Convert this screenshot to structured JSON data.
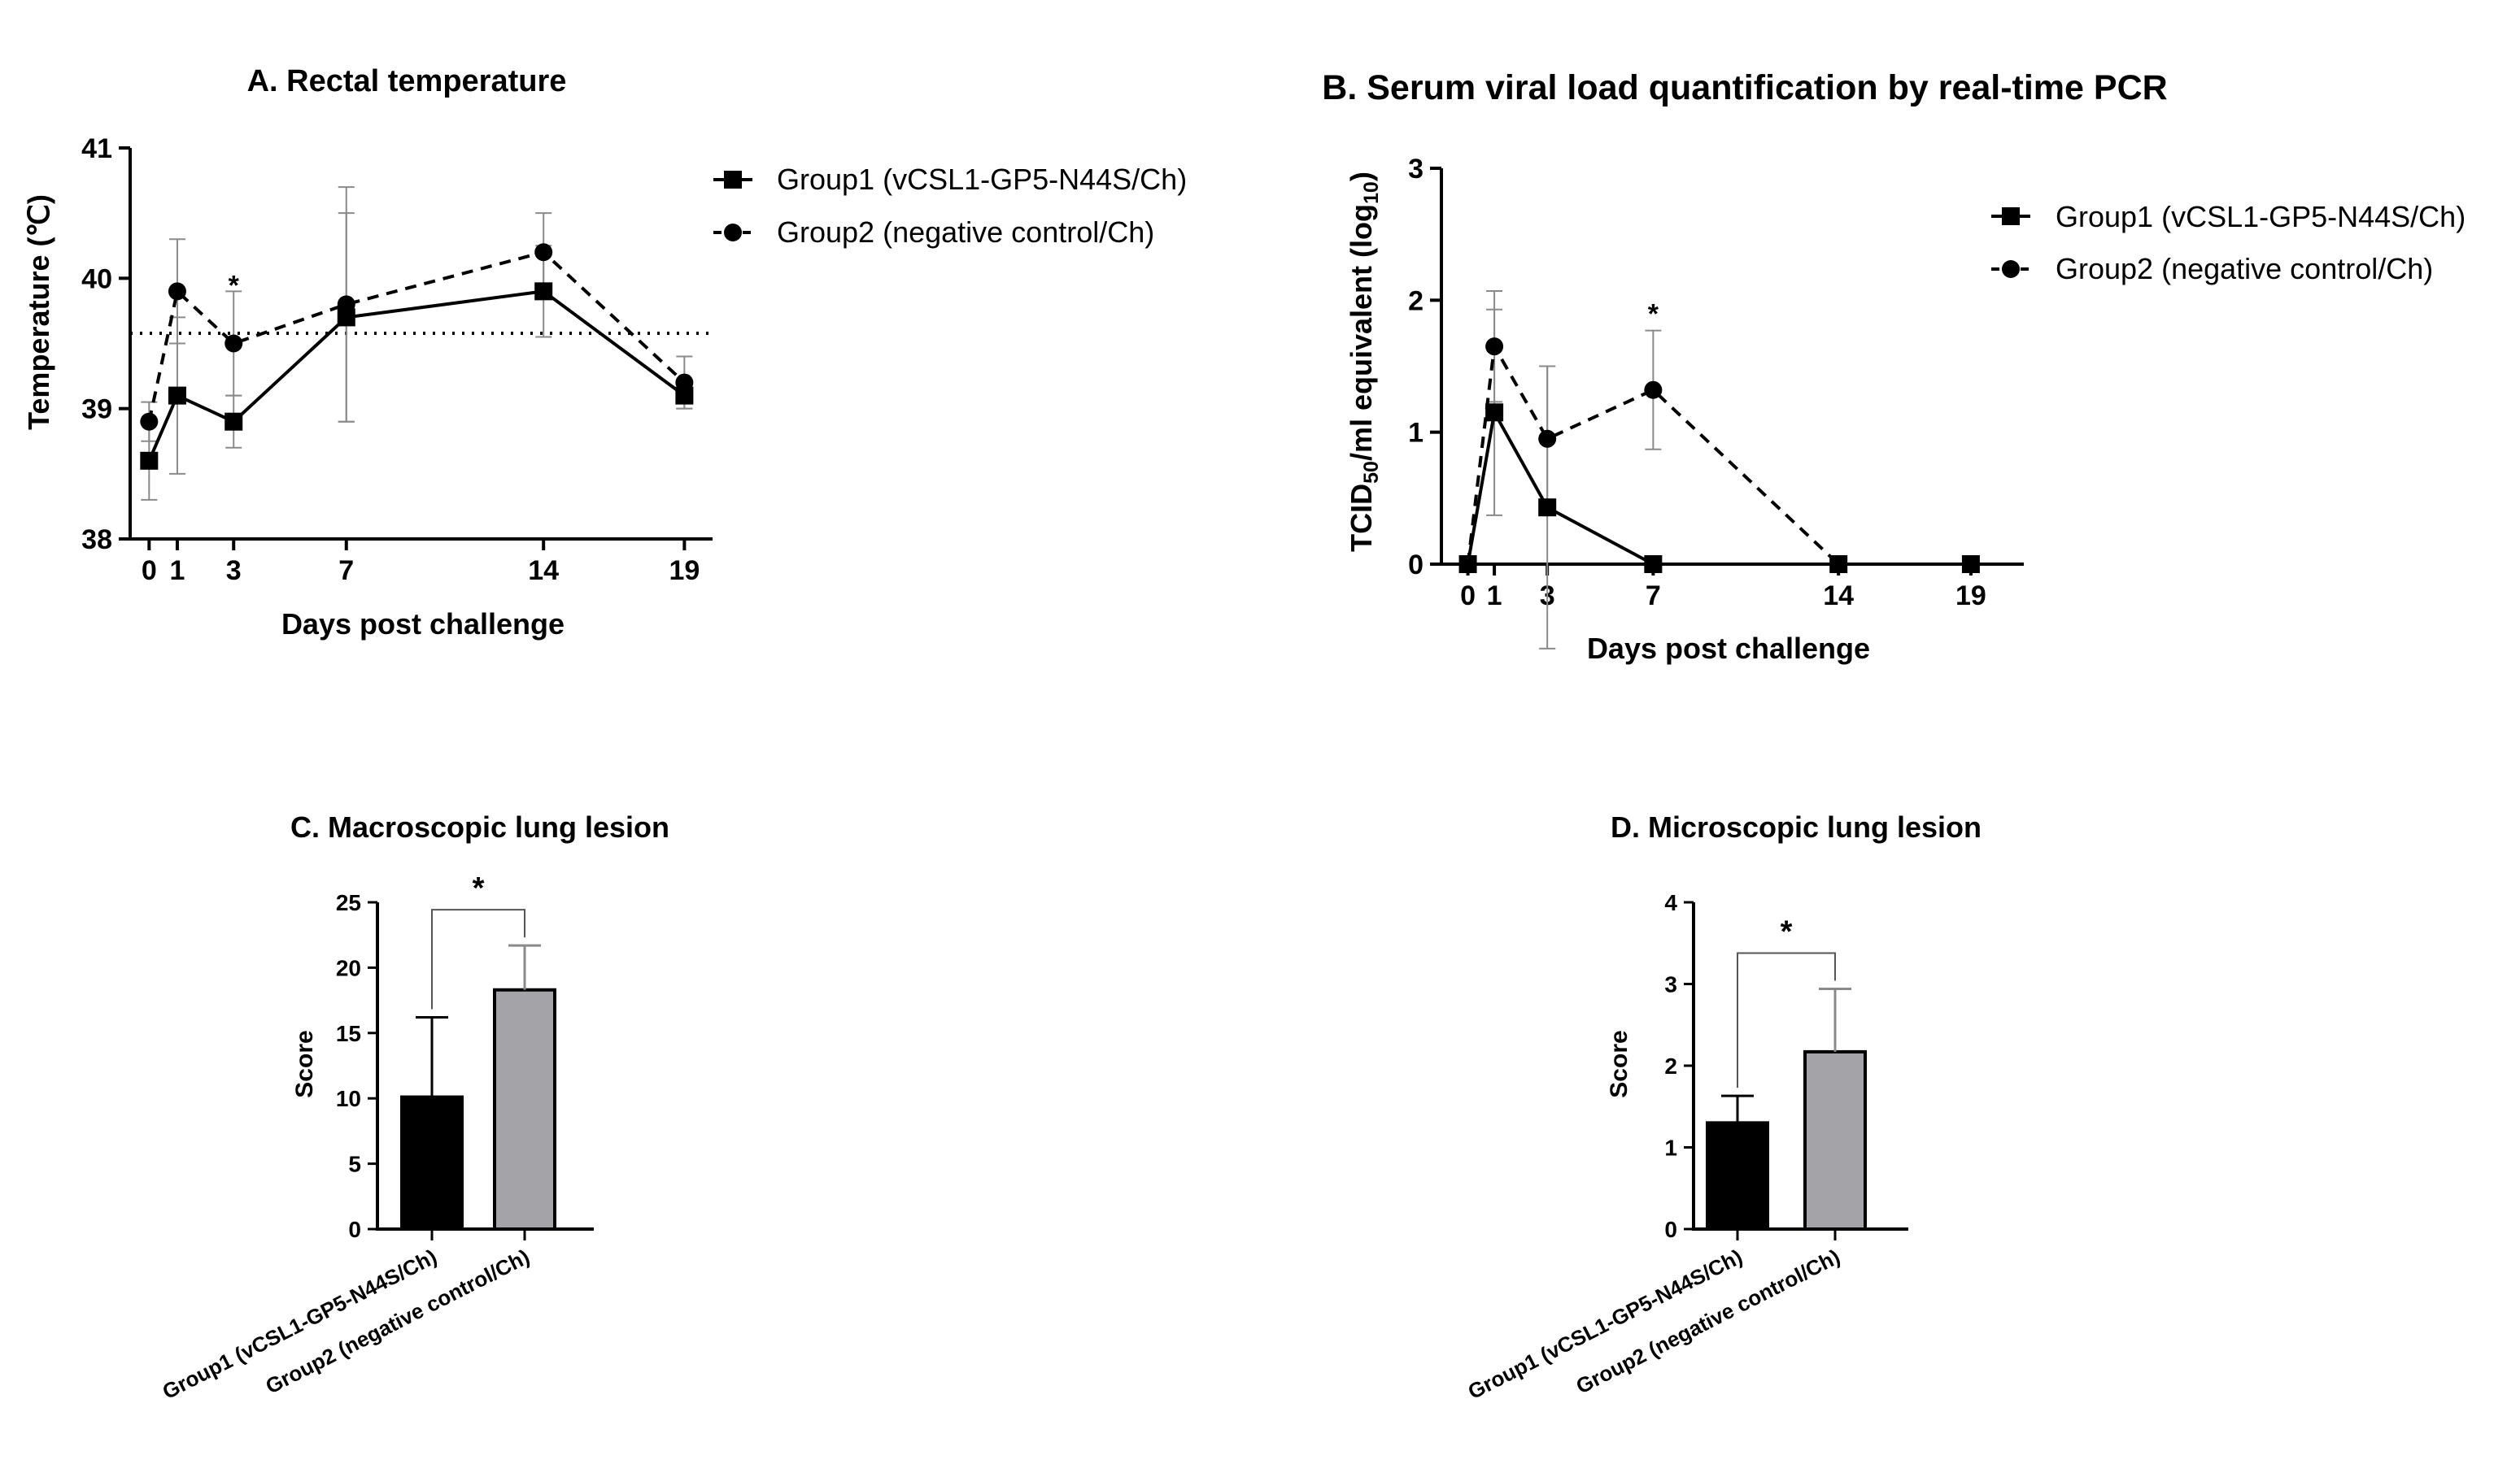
{
  "chart_data": [
    {
      "type": "line",
      "title": "A. Rectal temperature",
      "xlabel": "Days post challenge",
      "ylabel": "Temperature (℃)",
      "x": [
        0,
        1,
        3,
        7,
        14,
        19
      ],
      "x_ticks": [
        "0",
        "1",
        "3",
        "7",
        "14",
        "19"
      ],
      "y_ticks": [
        "38",
        "39",
        "40",
        "41"
      ],
      "ylim": [
        38,
        41
      ],
      "xlim": [
        -0.5,
        20
      ],
      "threshold": 39.6,
      "significance": [
        {
          "x": 3,
          "label": "*",
          "y": 39.95
        }
      ],
      "series": [
        {
          "name": "Group1 (vCSL1-GP5-N44S/Ch)",
          "marker": "square",
          "line": "solid",
          "values": [
            38.6,
            39.1,
            38.9,
            39.7,
            39.9,
            39.1
          ],
          "errors": [
            0.3,
            0.6,
            0.2,
            0.8,
            0.35,
            0.1
          ]
        },
        {
          "name": "Group2 (negative control/Ch)",
          "marker": "circle",
          "line": "dashed",
          "values": [
            38.9,
            39.9,
            39.5,
            39.8,
            40.2,
            39.2
          ],
          "errors": [
            0.15,
            0.4,
            0.4,
            0.9,
            0.3,
            0.2
          ]
        }
      ]
    },
    {
      "type": "line",
      "title": "B. Serum viral load quantification by real-time PCR",
      "xlabel": "Days post challenge",
      "ylabel_parts": [
        "TCID",
        "50",
        "/ml equivalent (log",
        "10",
        ")"
      ],
      "x": [
        0,
        1,
        3,
        7,
        14,
        19
      ],
      "x_ticks": [
        "0",
        "1",
        "3",
        "7",
        "14",
        "19"
      ],
      "y_ticks": [
        "0",
        "1",
        "2",
        "3"
      ],
      "ylim": [
        0,
        3
      ],
      "xlim": [
        -1,
        21
      ],
      "significance": [
        {
          "x": 7,
          "label": "*",
          "y": 1.9
        }
      ],
      "series": [
        {
          "name": "Group1 (vCSL1-GP5-N44S/Ch)",
          "marker": "square",
          "line": "solid",
          "values": [
            0,
            1.15,
            0.43,
            0,
            0,
            0
          ],
          "errors": [
            0,
            0.78,
            1.07,
            0,
            0,
            0
          ]
        },
        {
          "name": "Group2 (negative control/Ch)",
          "marker": "circle",
          "line": "dashed",
          "values": [
            0,
            1.65,
            0.95,
            1.32,
            0,
            0
          ],
          "errors": [
            0,
            0.42,
            0.55,
            0.45,
            0,
            0
          ]
        }
      ]
    },
    {
      "type": "bar",
      "title": "C. Macroscopic lung lesion",
      "ylabel": "Score",
      "categories": [
        "Group1 (vCSL1-GP5-N44S/Ch)",
        "Group2 (negative control/Ch)"
      ],
      "values": [
        10.1,
        18.3
      ],
      "errors": [
        6.1,
        3.4
      ],
      "colors": [
        "#000000",
        "#a3a3a8"
      ],
      "y_ticks": [
        "0",
        "5",
        "10",
        "15",
        "20",
        "25"
      ],
      "ylim": [
        0,
        25
      ],
      "significance": "*"
    },
    {
      "type": "bar",
      "title": "D. Microscopic lung lesion",
      "ylabel": "Score",
      "categories": [
        "Group1 (vCSL1-GP5-N44S/Ch)",
        "Group2 (negative control/Ch)"
      ],
      "values": [
        1.3,
        2.17
      ],
      "errors": [
        0.33,
        0.77
      ],
      "colors": [
        "#000000",
        "#a3a3a8"
      ],
      "y_ticks": [
        "0",
        "1",
        "2",
        "3",
        "4"
      ],
      "ylim": [
        0,
        4
      ],
      "significance": "*"
    }
  ]
}
